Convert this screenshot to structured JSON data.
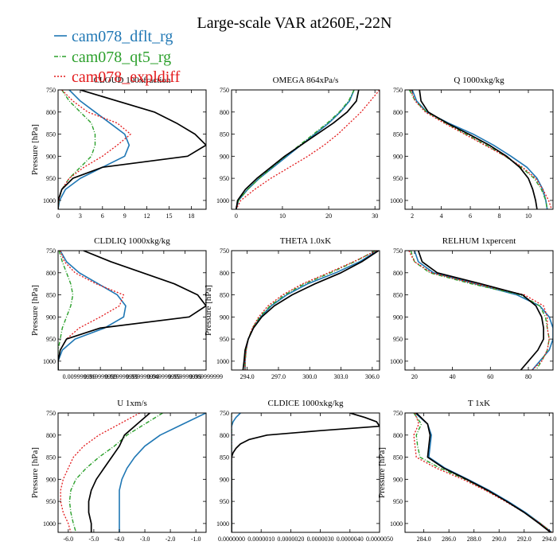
{
  "figure": {
    "title": "Large-scale VAR at260E,-22N"
  },
  "legend": [
    {
      "name": "cam078_dflt_rg",
      "color": "#1f77b4",
      "dash": "solid"
    },
    {
      "name": "cam078_qt5_rg",
      "color": "#2ca02c",
      "dash": "dashdot"
    },
    {
      "name": "cam078_expldiff",
      "color": "#e31a1c",
      "dash": "dotted"
    }
  ],
  "chart_data": [
    {
      "type": "line",
      "title": "CLOUD 100xfraction",
      "ylabel": "Pressure [hPa]",
      "xlim": [
        0,
        20
      ],
      "ylim": [
        750,
        1020
      ],
      "xticks": [
        0,
        3,
        6,
        9,
        12,
        15,
        18
      ],
      "xtick_labels": [
        "0",
        "3",
        "6",
        "9",
        "12",
        "15",
        "18"
      ],
      "yticks": [
        750,
        800,
        850,
        900,
        950,
        1000
      ],
      "y": [
        750,
        775,
        800,
        825,
        850,
        875,
        900,
        925,
        950,
        975,
        1000,
        1020
      ],
      "series": [
        {
          "name": "cam078_dflt_rg",
          "x": [
            1.5,
            3.0,
            5.0,
            7.0,
            9.0,
            9.6,
            9.0,
            6.0,
            3.0,
            1.0,
            0.2,
            0.0
          ]
        },
        {
          "name": "cam078_qt5_rg",
          "x": [
            0.5,
            1.5,
            3.0,
            4.5,
            5.0,
            5.0,
            4.5,
            3.0,
            1.5,
            0.5,
            0.1,
            0.0
          ]
        },
        {
          "name": "cam078_expldiff",
          "x": [
            0.5,
            2.0,
            4.0,
            8.0,
            9.8,
            8.0,
            6.0,
            3.5,
            1.5,
            0.5,
            0.1,
            0.0
          ]
        },
        {
          "name": "",
          "x": [
            3.0,
            8.0,
            13.0,
            16.0,
            18.5,
            20.0,
            17.5,
            6.0,
            2.0,
            0.5,
            0.0,
            0.0
          ]
        }
      ]
    },
    {
      "type": "line",
      "title": "OMEGA 864xPa/s",
      "ylabel": "",
      "xlim": [
        -1,
        31
      ],
      "ylim": [
        750,
        1020
      ],
      "xticks": [
        0,
        10,
        20,
        30
      ],
      "xtick_labels": [
        "0",
        "10",
        "20",
        "30"
      ],
      "yticks": [
        750,
        800,
        850,
        900,
        950,
        1000
      ],
      "y": [
        750,
        775,
        800,
        825,
        850,
        875,
        900,
        925,
        950,
        975,
        1000,
        1020
      ],
      "series": [
        {
          "name": "cam078_dflt_rg",
          "x": [
            25.5,
            24.5,
            22.5,
            20.0,
            17.0,
            14.0,
            11.0,
            8.0,
            5.0,
            2.5,
            0.5,
            0.0
          ]
        },
        {
          "name": "cam078_qt5_rg",
          "x": [
            25.5,
            24.3,
            22.3,
            19.7,
            16.7,
            13.7,
            10.7,
            7.8,
            5.0,
            2.5,
            0.5,
            0.0
          ]
        },
        {
          "name": "cam078_expldiff",
          "x": [
            31.0,
            29.0,
            27.0,
            24.5,
            22.0,
            19.0,
            15.5,
            11.5,
            7.5,
            4.0,
            1.0,
            0.0
          ]
        },
        {
          "name": "",
          "x": [
            26.5,
            26.0,
            24.0,
            21.0,
            17.5,
            14.0,
            10.5,
            7.5,
            4.5,
            2.0,
            0.3,
            0.0
          ]
        }
      ]
    },
    {
      "type": "line",
      "title": "Q 1000xkg/kg",
      "ylabel": "",
      "xlim": [
        1.5,
        11.7
      ],
      "ylim": [
        750,
        1020
      ],
      "xticks": [
        2,
        4,
        6,
        8,
        10
      ],
      "xtick_labels": [
        "2",
        "4",
        "6",
        "8",
        "10"
      ],
      "yticks": [
        750,
        800,
        850,
        900,
        950,
        1000
      ],
      "y": [
        750,
        775,
        800,
        825,
        850,
        875,
        900,
        925,
        950,
        975,
        1000,
        1020
      ],
      "series": [
        {
          "name": "cam078_dflt_rg",
          "x": [
            2.0,
            2.3,
            3.0,
            4.5,
            6.2,
            7.6,
            8.8,
            9.9,
            10.6,
            11.0,
            11.2,
            11.3
          ]
        },
        {
          "name": "cam078_qt5_rg",
          "x": [
            1.8,
            2.2,
            3.0,
            4.3,
            5.7,
            7.1,
            8.4,
            9.5,
            10.4,
            10.9,
            11.2,
            11.3
          ]
        },
        {
          "name": "cam078_expldiff",
          "x": [
            1.9,
            2.2,
            2.9,
            4.2,
            5.6,
            7.0,
            8.4,
            9.6,
            10.5,
            11.0,
            11.4,
            11.6
          ]
        },
        {
          "name": "",
          "x": [
            2.5,
            2.6,
            3.1,
            4.4,
            5.9,
            7.3,
            8.5,
            9.4,
            10.0,
            10.3,
            10.5,
            10.6
          ]
        }
      ]
    },
    {
      "type": "line",
      "title": "CLDLIQ 1000xkg/kg",
      "ylabel": "Pressure [hPa]",
      "xlim": [
        0,
        0.07
      ],
      "ylim": [
        750,
        1020
      ],
      "xticks": [
        0.01,
        0.02,
        0.03,
        0.04,
        0.05,
        0.06,
        0.07
      ],
      "xtick_labels": [
        "0.009999999",
        "0.019999999",
        "0.029999999",
        "0.039999999",
        "0.049999999",
        "0.059999999",
        "0.069999999"
      ],
      "yticks": [
        750,
        800,
        850,
        900,
        950,
        1000
      ],
      "y": [
        750,
        775,
        800,
        825,
        850,
        875,
        900,
        925,
        950,
        975,
        1000,
        1020
      ],
      "series": [
        {
          "name": "cam078_dflt_rg",
          "x": [
            0.001,
            0.004,
            0.01,
            0.019,
            0.028,
            0.032,
            0.031,
            0.022,
            0.008,
            0.002,
            0.0,
            0.0
          ]
        },
        {
          "name": "cam078_qt5_rg",
          "x": [
            0.0005,
            0.002,
            0.004,
            0.006,
            0.007,
            0.006,
            0.004,
            0.002,
            0.001,
            0.0,
            0.0,
            0.0
          ]
        },
        {
          "name": "cam078_expldiff",
          "x": [
            0.001,
            0.003,
            0.008,
            0.018,
            0.031,
            0.029,
            0.02,
            0.01,
            0.004,
            0.001,
            0.0,
            0.0
          ]
        },
        {
          "name": "",
          "x": [
            0.012,
            0.025,
            0.04,
            0.055,
            0.066,
            0.07,
            0.062,
            0.02,
            0.004,
            0.001,
            0.0,
            0.0
          ]
        }
      ]
    },
    {
      "type": "line",
      "title": "THETA 1.0xK",
      "ylabel": "Pressure [hPa]",
      "xlim": [
        292.5,
        306.7
      ],
      "ylim": [
        750,
        1020
      ],
      "xticks": [
        294.0,
        297.0,
        300.0,
        303.0,
        306.0
      ],
      "xtick_labels": [
        "294.0",
        "297.0",
        "300.0",
        "303.0",
        "306.0"
      ],
      "yticks": [
        750,
        800,
        850,
        900,
        950,
        1000
      ],
      "y": [
        750,
        775,
        800,
        825,
        850,
        875,
        900,
        925,
        950,
        975,
        1000,
        1020
      ],
      "series": [
        {
          "name": "cam078_dflt_rg",
          "x": [
            306.5,
            304.8,
            302.5,
            299.8,
            297.8,
            296.3,
            295.3,
            294.6,
            294.1,
            293.9,
            293.8,
            293.8
          ]
        },
        {
          "name": "cam078_qt5_rg",
          "x": [
            306.3,
            304.3,
            302.0,
            299.5,
            297.6,
            296.2,
            295.2,
            294.5,
            294.1,
            293.9,
            293.8,
            293.8
          ]
        },
        {
          "name": "cam078_expldiff",
          "x": [
            306.4,
            304.2,
            301.8,
            299.3,
            297.4,
            296.0,
            295.1,
            294.5,
            294.1,
            293.9,
            293.8,
            293.8
          ]
        },
        {
          "name": "",
          "x": [
            306.6,
            305.0,
            303.0,
            300.5,
            298.3,
            296.6,
            295.4,
            294.6,
            294.1,
            293.8,
            293.7,
            293.6
          ]
        }
      ]
    },
    {
      "type": "line",
      "title": "RELHUM 1xpercent",
      "ylabel": "",
      "xlim": [
        15,
        93
      ],
      "ylim": [
        750,
        1020
      ],
      "xticks": [
        20,
        40,
        60,
        80
      ],
      "xtick_labels": [
        "20",
        "40",
        "60",
        "80"
      ],
      "yticks": [
        750,
        800,
        850,
        900,
        950,
        1000
      ],
      "y": [
        750,
        775,
        800,
        825,
        850,
        875,
        900,
        925,
        950,
        975,
        1000,
        1020
      ],
      "series": [
        {
          "name": "cam078_dflt_rg",
          "x": [
            20,
            22,
            30,
            52,
            74,
            86,
            91,
            93,
            93,
            91,
            86,
            82
          ]
        },
        {
          "name": "cam078_qt5_rg",
          "x": [
            18,
            20,
            28,
            50,
            76,
            86,
            89,
            90,
            91,
            90,
            87,
            84
          ]
        },
        {
          "name": "cam078_expldiff",
          "x": [
            17,
            20,
            29,
            52,
            78,
            88,
            90,
            90,
            91,
            90,
            87,
            82
          ]
        },
        {
          "name": "",
          "x": [
            22,
            24,
            32,
            55,
            77,
            84,
            87,
            88,
            88,
            85,
            80,
            76
          ]
        }
      ]
    },
    {
      "type": "line",
      "title": "U 1xm/s",
      "ylabel": "Pressure [hPa]",
      "xlim": [
        -6.4,
        -0.6
      ],
      "ylim": [
        750,
        1020
      ],
      "xticks": [
        -6.0,
        -5.0,
        -4.0,
        -3.0,
        -2.0,
        -1.0
      ],
      "xtick_labels": [
        "-6.0",
        "-5.0",
        "-4.0",
        "-3.0",
        "-2.0",
        "-1.0"
      ],
      "yticks": [
        750,
        800,
        850,
        900,
        950,
        1000
      ],
      "y": [
        750,
        775,
        800,
        825,
        850,
        875,
        900,
        925,
        950,
        975,
        1000,
        1020
      ],
      "series": [
        {
          "name": "cam078_dflt_rg",
          "x": [
            -0.6,
            -1.5,
            -2.4,
            -3.0,
            -3.4,
            -3.7,
            -3.9,
            -4.0,
            -4.0,
            -4.0,
            -4.0,
            -4.0
          ]
        },
        {
          "name": "cam078_qt5_rg",
          "x": [
            -2.3,
            -3.0,
            -3.7,
            -4.2,
            -4.8,
            -5.3,
            -5.7,
            -5.9,
            -5.95,
            -5.9,
            -5.8,
            -5.7
          ]
        },
        {
          "name": "cam078_expldiff",
          "x": [
            -3.2,
            -4.0,
            -4.8,
            -5.4,
            -5.8,
            -6.0,
            -6.2,
            -6.3,
            -6.3,
            -6.2,
            -6.0,
            -5.9
          ]
        },
        {
          "name": "",
          "x": [
            -2.8,
            -3.3,
            -3.8,
            -4.0,
            -4.3,
            -4.6,
            -4.9,
            -5.1,
            -5.2,
            -5.2,
            -5.1,
            -5.1
          ]
        }
      ]
    },
    {
      "type": "line",
      "title": "CLDICE 1000xkg/kg",
      "ylabel": "",
      "xlim": [
        0,
        5e-06
      ],
      "ylim": [
        750,
        1020
      ],
      "xticks": [
        0.0,
        1e-06,
        2e-06,
        3e-06,
        4e-06,
        5e-06
      ],
      "xtick_labels": [
        "0.0000000",
        "0.0000010",
        "0.0000020",
        "0.0000030",
        "0.0000040",
        "0.0000050"
      ],
      "yticks": [
        750,
        800,
        850,
        900,
        950,
        1000
      ],
      "y": [
        750,
        760,
        770,
        780,
        790,
        800,
        810,
        820,
        830,
        840,
        850,
        875,
        900,
        950,
        1000,
        1020
      ],
      "series": [
        {
          "name": "cam078_dflt_rg",
          "x": [
            3e-07,
            1.5e-07,
            5e-08,
            0.0,
            0.0,
            0.0,
            0.0,
            0.0,
            0.0,
            0.0,
            0.0,
            0.0,
            0.0,
            0.0,
            0.0,
            0.0
          ]
        },
        {
          "name": "cam078_qt5_rg",
          "x": [
            0.0,
            0.0,
            0.0,
            0.0,
            0.0,
            0.0,
            0.0,
            0.0,
            0.0,
            0.0,
            0.0,
            0.0,
            0.0,
            0.0,
            0.0,
            0.0
          ]
        },
        {
          "name": "cam078_expldiff",
          "x": [
            0.0,
            0.0,
            0.0,
            0.0,
            0.0,
            0.0,
            0.0,
            0.0,
            0.0,
            0.0,
            0.0,
            0.0,
            0.0,
            0.0,
            0.0,
            0.0
          ]
        },
        {
          "name": "",
          "x": [
            4e-06,
            4.5e-06,
            4.9e-06,
            5e-06,
            3e-06,
            1.2e-06,
            6e-07,
            3e-07,
            1.5e-07,
            5e-08,
            0.0,
            0.0,
            0.0,
            0.0,
            0.0,
            0.0
          ]
        }
      ]
    },
    {
      "type": "line",
      "title": "T 1xK",
      "ylabel": "Pressure [hPa]",
      "xlim": [
        282.5,
        294.3
      ],
      "ylim": [
        750,
        1020
      ],
      "xticks": [
        284.0,
        286.0,
        288.0,
        290.0,
        292.0,
        294.0
      ],
      "xtick_labels": [
        "284.0",
        "286.0",
        "288.0",
        "290.0",
        "292.0",
        "294.0"
      ],
      "yticks": [
        750,
        800,
        850,
        900,
        950,
        1000
      ],
      "y": [
        750,
        775,
        800,
        825,
        850,
        875,
        900,
        925,
        950,
        975,
        1000,
        1020
      ],
      "series": [
        {
          "name": "cam078_dflt_rg",
          "x": [
            283.3,
            284.3,
            284.6,
            284.5,
            284.4,
            285.7,
            287.5,
            289.2,
            290.7,
            292.1,
            293.3,
            294.2
          ]
        },
        {
          "name": "cam078_qt5_rg",
          "x": [
            283.2,
            283.8,
            283.4,
            283.5,
            283.7,
            285.3,
            287.3,
            289.0,
            290.6,
            292.0,
            293.3,
            294.2
          ]
        },
        {
          "name": "cam078_expldiff",
          "x": [
            283.3,
            283.6,
            283.2,
            283.3,
            283.4,
            285.0,
            287.1,
            288.9,
            290.5,
            292.0,
            293.3,
            294.2
          ]
        },
        {
          "name": "",
          "x": [
            283.4,
            284.3,
            284.5,
            284.4,
            284.3,
            285.6,
            287.4,
            289.1,
            290.6,
            292.0,
            293.2,
            294.1
          ]
        }
      ]
    }
  ]
}
